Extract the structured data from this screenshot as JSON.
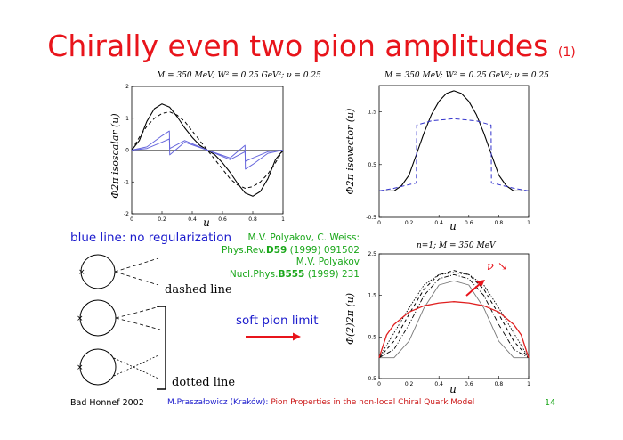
{
  "slide": {
    "title": "Chirally even two pion amplitudes",
    "title_suffix": "(1)",
    "blue_line_label": "blue line: no regularization",
    "references": [
      {
        "pre": "M.V. Polyakov, C. Weiss:",
        "bold": "",
        "post": ""
      },
      {
        "pre": "Phys.Rev.",
        "bold": "D59",
        "post": " (1999) 091502"
      },
      {
        "pre": "M.V. Polyakov",
        "bold": "",
        "post": ""
      },
      {
        "pre": "Nucl.Phys.",
        "bold": "B555",
        "post": " (1999) 231"
      }
    ],
    "dashed_line_label": "dashed line",
    "dotted_line_label": "dotted line",
    "soft_pion_label": "soft pion limit",
    "nu_label": "ν ↘",
    "diagram_mark": "×"
  },
  "footer": {
    "left": "Bad Honnef 2002",
    "author": "M.Praszałowicz (Kraków):",
    "talk": "Pion Properties in the non-local Chiral Quark Model",
    "page": "14"
  },
  "colors": {
    "title": "#e8141b",
    "blue": "#1a1acc",
    "green": "#1aa71a",
    "red": "#cc1a1a",
    "curve_blue": "#6666dd",
    "curve_red": "#e02020"
  },
  "chart_data": [
    {
      "type": "line",
      "title": "M = 350 MeV; W² = 0.25 GeV²; ν = 0.25",
      "xlabel": "u",
      "ylabel": "Φ2π isoscalar (u)",
      "xlim": [
        0,
        1
      ],
      "ylim": [
        -2,
        2
      ],
      "xticks": [
        "0",
        "0.2",
        "0.4",
        "0.6",
        "0.8",
        "1"
      ],
      "yticks": [
        "-2",
        "-1",
        "0",
        "1",
        "2"
      ],
      "series": [
        {
          "style": "solid-black",
          "x": [
            0,
            0.05,
            0.1,
            0.15,
            0.2,
            0.25,
            0.3,
            0.35,
            0.4,
            0.45,
            0.5,
            0.55,
            0.6,
            0.65,
            0.7,
            0.75,
            0.8,
            0.85,
            0.9,
            0.95,
            1
          ],
          "y": [
            0,
            0.3,
            0.9,
            1.3,
            1.45,
            1.35,
            1.05,
            0.7,
            0.4,
            0.15,
            0,
            -0.15,
            -0.4,
            -0.7,
            -1.05,
            -1.35,
            -1.45,
            -1.3,
            -0.9,
            -0.3,
            0
          ]
        },
        {
          "style": "dashed-black",
          "x": [
            0,
            0.05,
            0.1,
            0.15,
            0.2,
            0.25,
            0.3,
            0.35,
            0.4,
            0.45,
            0.5,
            0.55,
            0.6,
            0.65,
            0.7,
            0.75,
            0.8,
            0.85,
            0.9,
            0.95,
            1
          ],
          "y": [
            0,
            0.4,
            0.75,
            1.0,
            1.15,
            1.2,
            1.1,
            0.9,
            0.6,
            0.3,
            0,
            -0.3,
            -0.6,
            -0.9,
            -1.1,
            -1.2,
            -1.15,
            -1.0,
            -0.75,
            -0.4,
            0
          ]
        },
        {
          "style": "solid-blue",
          "x": [
            0,
            0.1,
            0.2,
            0.249,
            0.251,
            0.35,
            0.5,
            0.65,
            0.749,
            0.751,
            0.8,
            0.9,
            1
          ],
          "y": [
            0,
            0.1,
            0.45,
            0.6,
            -0.15,
            0.25,
            0,
            -0.25,
            0.15,
            -0.6,
            -0.45,
            -0.1,
            0
          ]
        },
        {
          "style": "solid-blue",
          "x": [
            0,
            0.1,
            0.2,
            0.249,
            0.251,
            0.35,
            0.5,
            0.65,
            0.749,
            0.751,
            0.8,
            0.9,
            1
          ],
          "y": [
            0,
            0.05,
            0.25,
            0.35,
            0.05,
            0.3,
            0,
            -0.3,
            -0.05,
            -0.35,
            -0.25,
            -0.05,
            0
          ]
        }
      ]
    },
    {
      "type": "line",
      "title": "M = 350 MeV; W² = 0.25 GeV²; ν = 0.25",
      "xlabel": "u",
      "ylabel": "Φ2π isovector (u)",
      "xlim": [
        0,
        1
      ],
      "ylim": [
        -0.5,
        2
      ],
      "xticks": [
        "0",
        "0.2",
        "0.4",
        "0.6",
        "0.8",
        "1"
      ],
      "yticks": [
        "-0.5",
        "0.5",
        "1.5"
      ],
      "series": [
        {
          "style": "solid-black",
          "x": [
            0,
            0.1,
            0.15,
            0.2,
            0.25,
            0.3,
            0.35,
            0.4,
            0.45,
            0.5,
            0.55,
            0.6,
            0.65,
            0.7,
            0.75,
            0.8,
            0.85,
            0.9,
            1
          ],
          "y": [
            0,
            0,
            0.1,
            0.3,
            0.7,
            1.1,
            1.45,
            1.7,
            1.85,
            1.9,
            1.85,
            1.7,
            1.45,
            1.1,
            0.7,
            0.3,
            0.1,
            0,
            0
          ]
        },
        {
          "style": "dashed-blue",
          "x": [
            0,
            0.1,
            0.2,
            0.249,
            0.251,
            0.35,
            0.5,
            0.65,
            0.749,
            0.751,
            0.8,
            0.9,
            1
          ],
          "y": [
            0,
            0.05,
            0.12,
            0.15,
            1.25,
            1.33,
            1.37,
            1.33,
            1.25,
            0.15,
            0.12,
            0.05,
            0
          ]
        }
      ]
    },
    {
      "type": "line",
      "title": "n=1; M = 350 MeV",
      "xlabel": "u",
      "ylabel": "Φ(2)2π (u)",
      "xlim": [
        0,
        1
      ],
      "ylim": [
        -0.5,
        2.5
      ],
      "xticks": [
        "0",
        "0.2",
        "0.4",
        "0.6",
        "0.8",
        "1"
      ],
      "yticks": [
        "-0.5",
        "0.5",
        "1.5",
        "2.5"
      ],
      "series": [
        {
          "style": "solid-gray",
          "x": [
            0,
            0.1,
            0.2,
            0.3,
            0.4,
            0.5,
            0.6,
            0.7,
            0.8,
            0.9,
            1
          ],
          "y": [
            0,
            0,
            0.4,
            1.2,
            1.75,
            1.85,
            1.75,
            1.2,
            0.4,
            0,
            0
          ]
        },
        {
          "style": "dashdot-black",
          "x": [
            0,
            0.1,
            0.2,
            0.3,
            0.4,
            0.5,
            0.6,
            0.7,
            0.8,
            0.9,
            1
          ],
          "y": [
            0,
            0.2,
            0.8,
            1.5,
            1.9,
            2.0,
            1.9,
            1.5,
            0.8,
            0.2,
            0
          ]
        },
        {
          "style": "dashed-black",
          "x": [
            0,
            0.1,
            0.2,
            0.3,
            0.4,
            0.5,
            0.6,
            0.7,
            0.8,
            0.9,
            1
          ],
          "y": [
            0,
            0.4,
            1.05,
            1.65,
            2.0,
            2.1,
            2.0,
            1.65,
            1.05,
            0.4,
            0
          ]
        },
        {
          "style": "dotted-black",
          "x": [
            0,
            0.1,
            0.2,
            0.3,
            0.4,
            0.5,
            0.6,
            0.7,
            0.8,
            0.9,
            1
          ],
          "y": [
            0,
            0.6,
            1.2,
            1.75,
            2.0,
            2.05,
            2.0,
            1.75,
            1.2,
            0.6,
            0
          ]
        },
        {
          "style": "solid-red",
          "x": [
            0,
            0.05,
            0.1,
            0.2,
            0.3,
            0.4,
            0.5,
            0.6,
            0.7,
            0.8,
            0.9,
            0.95,
            1
          ],
          "y": [
            0,
            0.55,
            0.8,
            1.1,
            1.25,
            1.32,
            1.35,
            1.32,
            1.25,
            1.1,
            0.8,
            0.55,
            0
          ]
        }
      ]
    }
  ]
}
